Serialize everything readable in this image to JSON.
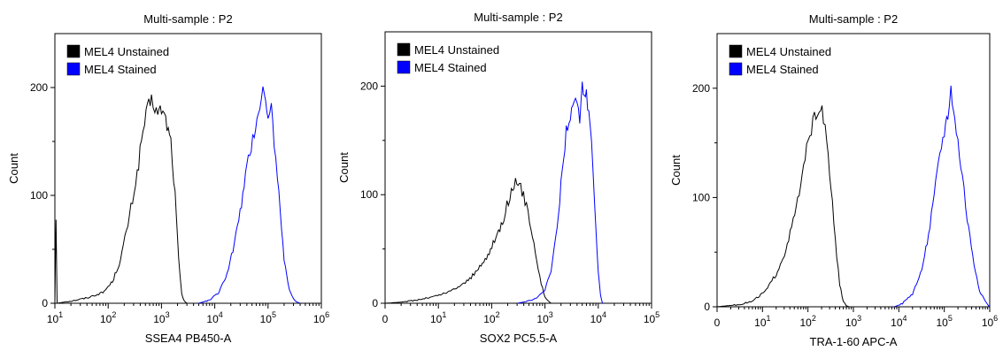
{
  "chart_data": [
    {
      "type": "line",
      "title": "Multi-sample : P2",
      "xlabel": "SSEA4 PB450-A",
      "ylabel": "Count",
      "x_scale": "log",
      "xlim": [
        10,
        1000000
      ],
      "ylim": [
        0,
        250
      ],
      "y_ticks": [
        0,
        100,
        200
      ],
      "x_ticks": [
        {
          "v": 10,
          "base": "10",
          "exp": "1"
        },
        {
          "v": 100,
          "base": "10",
          "exp": "2"
        },
        {
          "v": 1000,
          "base": "10",
          "exp": "3"
        },
        {
          "v": 10000,
          "base": "10",
          "exp": "4"
        },
        {
          "v": 100000,
          "base": "10",
          "exp": "5"
        },
        {
          "v": 1000000,
          "base": "10",
          "exp": "6"
        }
      ],
      "legend": [
        {
          "label": "MEL4 Unstained",
          "color": "#000000"
        },
        {
          "label": "MEL4 Stained",
          "color": "#0000ff"
        }
      ],
      "series": [
        {
          "name": "MEL4 Unstained",
          "color": "#000000",
          "x": [
            10,
            10.5,
            11,
            20,
            40,
            80,
            120,
            170,
            250,
            350,
            450,
            550,
            650,
            750,
            850,
            1000,
            1200,
            1500,
            1800,
            2100,
            2400,
            2700,
            3000
          ],
          "y": [
            0,
            80,
            0,
            2,
            5,
            10,
            20,
            40,
            80,
            120,
            160,
            180,
            188,
            182,
            175,
            180,
            170,
            150,
            100,
            40,
            8,
            2,
            0
          ]
        },
        {
          "name": "MEL4 Stained",
          "color": "#0000ff",
          "x": [
            5000,
            8000,
            12000,
            17000,
            22000,
            30000,
            40000,
            55000,
            70000,
            80000,
            90000,
            100000,
            115000,
            130000,
            150000,
            170000,
            200000,
            250000,
            320000,
            400000
          ],
          "y": [
            0,
            3,
            10,
            28,
            50,
            85,
            125,
            160,
            185,
            200,
            185,
            178,
            182,
            150,
            120,
            80,
            40,
            12,
            2,
            0
          ]
        }
      ]
    },
    {
      "type": "line",
      "title": "Multi-sample : P2",
      "xlabel": "SOX2 PC5.5-A",
      "ylabel": "Count",
      "x_scale": "log",
      "xlim": [
        1,
        100000
      ],
      "ylim": [
        0,
        250
      ],
      "y_ticks": [
        0,
        100,
        200
      ],
      "x_ticks": [
        {
          "v": 1,
          "base": "0",
          "exp": ""
        },
        {
          "v": 10,
          "base": "10",
          "exp": "1"
        },
        {
          "v": 100,
          "base": "10",
          "exp": "2"
        },
        {
          "v": 1000,
          "base": "10",
          "exp": "3"
        },
        {
          "v": 10000,
          "base": "10",
          "exp": "4"
        },
        {
          "v": 100000,
          "base": "10",
          "exp": "5"
        }
      ],
      "legend": [
        {
          "label": "MEL4 Unstained",
          "color": "#000000"
        },
        {
          "label": "MEL4 Stained",
          "color": "#0000ff"
        }
      ],
      "series": [
        {
          "name": "MEL4 Unstained",
          "color": "#000000",
          "x": [
            1,
            2,
            4,
            8,
            15,
            30,
            50,
            80,
            120,
            170,
            220,
            280,
            350,
            450,
            550,
            700,
            850,
            1000,
            1150,
            1300
          ],
          "y": [
            0,
            1,
            3,
            6,
            10,
            18,
            28,
            42,
            60,
            80,
            100,
            110,
            105,
            92,
            70,
            40,
            18,
            6,
            2,
            0
          ]
        },
        {
          "name": "MEL4 Stained",
          "color": "#0000ff",
          "x": [
            300,
            500,
            700,
            1000,
            1300,
            1600,
            2000,
            2500,
            3000,
            3500,
            4000,
            4500,
            5000,
            5500,
            6000,
            7000,
            8000,
            9000,
            10000,
            11000,
            12000
          ],
          "y": [
            0,
            2,
            5,
            12,
            30,
            60,
            110,
            160,
            175,
            180,
            190,
            165,
            200,
            185,
            190,
            165,
            120,
            70,
            30,
            8,
            0
          ]
        }
      ]
    },
    {
      "type": "line",
      "title": "Multi-sample : P2",
      "xlabel": "TRA-1-60 APC-A",
      "ylabel": "Count",
      "x_scale": "log",
      "xlim": [
        1,
        1000000
      ],
      "ylim": [
        0,
        250
      ],
      "y_ticks": [
        0,
        100,
        200
      ],
      "x_ticks": [
        {
          "v": 1,
          "base": "0",
          "exp": ""
        },
        {
          "v": 10,
          "base": "10",
          "exp": "1"
        },
        {
          "v": 100,
          "base": "10",
          "exp": "2"
        },
        {
          "v": 1000,
          "base": "10",
          "exp": "3"
        },
        {
          "v": 10000,
          "base": "10",
          "exp": "4"
        },
        {
          "v": 100000,
          "base": "10",
          "exp": "5"
        },
        {
          "v": 1000000,
          "base": "10",
          "exp": "6"
        }
      ],
      "legend": [
        {
          "label": "MEL4 Unstained",
          "color": "#000000"
        },
        {
          "label": "MEL4 Stained",
          "color": "#0000ff"
        }
      ],
      "series": [
        {
          "name": "MEL4 Unstained",
          "color": "#000000",
          "x": [
            1,
            3,
            6,
            12,
            20,
            35,
            55,
            80,
            110,
            150,
            190,
            220,
            260,
            320,
            400,
            500,
            600,
            700,
            800
          ],
          "y": [
            0,
            2,
            5,
            15,
            30,
            55,
            90,
            125,
            160,
            175,
            185,
            170,
            150,
            110,
            60,
            20,
            5,
            1,
            0
          ]
        },
        {
          "name": "MEL4 Stained",
          "color": "#0000ff",
          "x": [
            8000,
            12000,
            20000,
            30000,
            45000,
            60000,
            80000,
            100000,
            120000,
            140000,
            170000,
            200000,
            250000,
            320000,
            450000,
            600000,
            800000,
            1000000
          ],
          "y": [
            0,
            3,
            12,
            30,
            65,
            100,
            140,
            160,
            175,
            200,
            170,
            150,
            120,
            80,
            40,
            15,
            5,
            0
          ]
        }
      ]
    }
  ]
}
